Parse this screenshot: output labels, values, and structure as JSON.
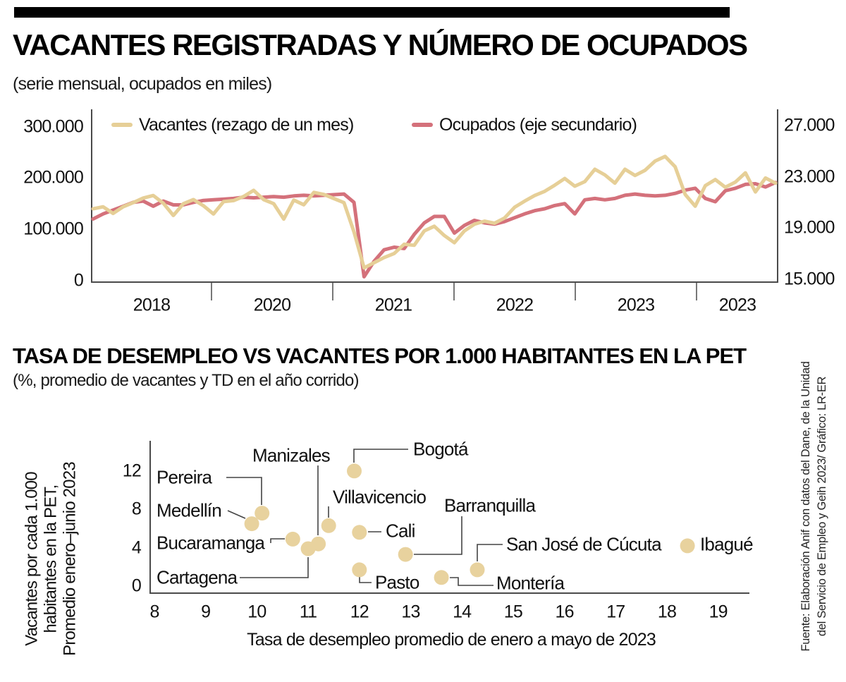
{
  "accent_colors": {
    "vacantes_line": "#E6CF97",
    "ocupados_line": "#D4717B",
    "scatter_dot": "#E8D29E",
    "top_bar": "#000000",
    "axis": "#4a4a4a"
  },
  "source": {
    "line1": "Fuente: Elaboración Anif con datos del Dane, de la Unidad",
    "line2": "del Servicio de Empleo y Geih 2023/ Gráfico: LR-ER"
  },
  "chart_data": [
    {
      "type": "line",
      "title": "VACANTES REGISTRADAS Y NÚMERO DE OCUPADOS",
      "subtitle": "(serie mensual, ocupados en miles)",
      "grid": false,
      "legend_position": "top",
      "x_months": [
        "2018-01",
        "2018-02",
        "2018-03",
        "2018-04",
        "2018-05",
        "2018-06",
        "2018-07",
        "2018-08",
        "2018-09",
        "2018-10",
        "2018-11",
        "2018-12",
        "2019-01",
        "2019-02",
        "2019-03",
        "2019-04",
        "2019-05",
        "2019-06",
        "2019-07",
        "2019-08",
        "2019-09",
        "2019-10",
        "2019-11",
        "2019-12",
        "2020-01",
        "2020-02",
        "2020-03",
        "2020-04",
        "2020-05",
        "2020-06",
        "2020-07",
        "2020-08",
        "2020-09",
        "2020-10",
        "2020-11",
        "2020-12",
        "2021-01",
        "2021-02",
        "2021-03",
        "2021-04",
        "2021-05",
        "2021-06",
        "2021-07",
        "2021-08",
        "2021-09",
        "2021-10",
        "2021-11",
        "2021-12",
        "2022-01",
        "2022-02",
        "2022-03",
        "2022-04",
        "2022-05",
        "2022-06",
        "2022-07",
        "2022-08",
        "2022-09",
        "2022-10",
        "2022-11",
        "2022-12",
        "2023-01",
        "2023-02",
        "2023-03",
        "2023-04",
        "2023-05",
        "2023-06",
        "2023-07",
        "2023-08",
        "2023-09"
      ],
      "x_tick_labels": [
        "2018",
        "2020",
        "2021",
        "2022",
        "2023",
        "2023"
      ],
      "left_axis": {
        "min": 0,
        "max": 300000,
        "tick_values": [
          300000,
          200000,
          100000,
          0
        ],
        "tick_labels": [
          "300.000",
          "200.000",
          "100.000",
          "0"
        ]
      },
      "right_axis": {
        "min": 15000,
        "max": 27000,
        "tick_values": [
          27000,
          23000,
          19000,
          15000
        ],
        "tick_labels": [
          "27.000",
          "23.000",
          "19.000",
          "15.000"
        ]
      },
      "series": [
        {
          "name": "Vacantes (rezago de un mes)",
          "axis": "left",
          "color": "#E6CF97",
          "values": [
            140000,
            144000,
            131000,
            144000,
            152000,
            161000,
            166000,
            151000,
            127000,
            150000,
            158000,
            146000,
            130000,
            154000,
            156000,
            164000,
            176000,
            158000,
            150000,
            120000,
            157000,
            148000,
            172000,
            168000,
            160000,
            152000,
            95000,
            25000,
            35000,
            45000,
            53000,
            71000,
            69000,
            97000,
            106000,
            88000,
            74000,
            97000,
            110000,
            116000,
            112000,
            122000,
            143000,
            155000,
            166000,
            174000,
            186000,
            199000,
            184000,
            193000,
            217000,
            206000,
            190000,
            217000,
            205000,
            215000,
            233000,
            242000,
            222000,
            168000,
            145000,
            185000,
            197000,
            182000,
            192000,
            210000,
            173000,
            200000,
            190000
          ]
        },
        {
          "name": "Ocupados (eje secundario)",
          "axis": "right",
          "color": "#D4717B",
          "values": [
            19700,
            20100,
            20400,
            20700,
            21000,
            21100,
            20700,
            21100,
            20800,
            20800,
            21000,
            21150,
            21200,
            21250,
            21300,
            21400,
            21350,
            21400,
            21450,
            21400,
            21500,
            21550,
            21500,
            21550,
            21600,
            21650,
            21000,
            15200,
            16400,
            17300,
            17500,
            17400,
            18500,
            19400,
            19900,
            19900,
            18600,
            19200,
            19600,
            19400,
            19300,
            19500,
            19800,
            20100,
            20350,
            20500,
            20750,
            20900,
            20100,
            21200,
            21300,
            21200,
            21300,
            21550,
            21650,
            21550,
            21500,
            21550,
            21700,
            21950,
            22100,
            21300,
            21050,
            21900,
            22100,
            22400,
            22450,
            22200,
            22550
          ]
        }
      ]
    },
    {
      "type": "scatter",
      "title": "TASA DE DESEMPLEO VS VACANTES POR 1.000 HABITANTES EN LA PET",
      "subtitle": "(%, promedio de vacantes y TD en el año corrido)",
      "xlabel": "Tasa de desempleo promedio de enero a mayo de 2023",
      "ylabel": "Vacantes por cada 1.000 habitantes en la PET, Promedio enero–junio 2023",
      "ylabel_lines": [
        "Vacantes por cada 1.000",
        "habitantes en la PET,",
        "Promedio enero–junio 2023"
      ],
      "xlim": [
        8,
        19.6
      ],
      "ylim": [
        -0.8,
        15.1
      ],
      "x_ticks": [
        8,
        9,
        10,
        11,
        12,
        13,
        14,
        15,
        16,
        17,
        18,
        19
      ],
      "y_ticks": [
        12,
        8,
        4,
        0
      ],
      "grid": false,
      "point_color": "#E8D29E",
      "points": [
        {
          "name": "Medellín",
          "x": 9.9,
          "y": 6.5
        },
        {
          "name": "Pereira",
          "x": 10.1,
          "y": 7.6
        },
        {
          "name": "Bucaramanga",
          "x": 10.7,
          "y": 4.9
        },
        {
          "name": "Cartagena",
          "x": 11.0,
          "y": 3.9
        },
        {
          "name": "Manizales",
          "x": 11.2,
          "y": 4.4
        },
        {
          "name": "Villavicencio",
          "x": 11.4,
          "y": 6.3
        },
        {
          "name": "Bogotá",
          "x": 11.9,
          "y": 12.0
        },
        {
          "name": "Cali",
          "x": 12.0,
          "y": 5.6
        },
        {
          "name": "Pasto",
          "x": 12.0,
          "y": 1.7
        },
        {
          "name": "Barranquilla",
          "x": 12.9,
          "y": 3.3
        },
        {
          "name": "Montería",
          "x": 13.6,
          "y": 0.9
        },
        {
          "name": "San José de Cúcuta",
          "x": 14.3,
          "y": 1.7
        },
        {
          "name": "Ibagué",
          "x": 18.4,
          "y": 4.2
        }
      ]
    }
  ]
}
